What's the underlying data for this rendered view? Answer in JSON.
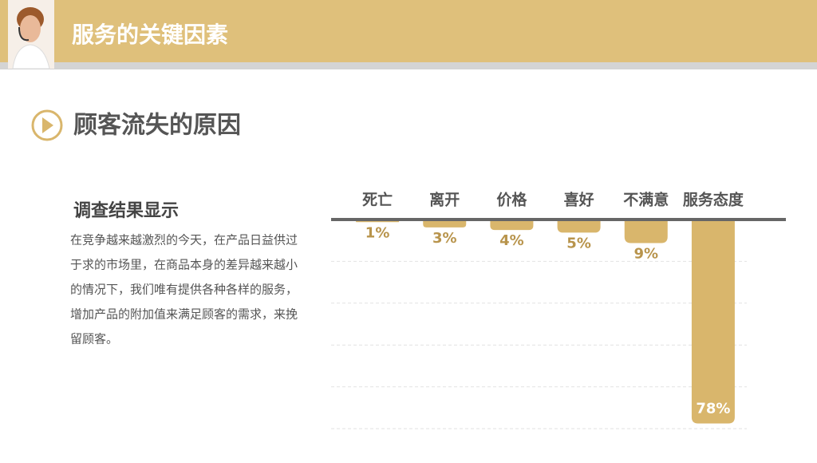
{
  "header": {
    "title": "服务的关键因素"
  },
  "section": {
    "title": "顾客流失的原因"
  },
  "survey": {
    "heading": "调查结果显示",
    "lines": [
      "在竞争越来越激烈的今天，在产品日益供过",
      "于求的市场里，在商品本身的差异越来越小",
      "的情况下，我们唯有提供各种各样的服务，",
      "增加产品的附加值来满足顾客的需求，来挽",
      "留顾客。"
    ]
  },
  "chart_data": {
    "type": "bar",
    "categories": [
      "死亡",
      "离开",
      "价格",
      "喜好",
      "不满意",
      "服务态度"
    ],
    "values": [
      1,
      3,
      4,
      5,
      9,
      78
    ],
    "value_labels": [
      "1%",
      "3%",
      "4%",
      "5%",
      "9%",
      "78%"
    ],
    "color": "#d9b66c",
    "ylim": [
      0,
      80
    ],
    "yticks": [
      0,
      16,
      32,
      48,
      64,
      80
    ],
    "grid": true,
    "inverted": true
  }
}
